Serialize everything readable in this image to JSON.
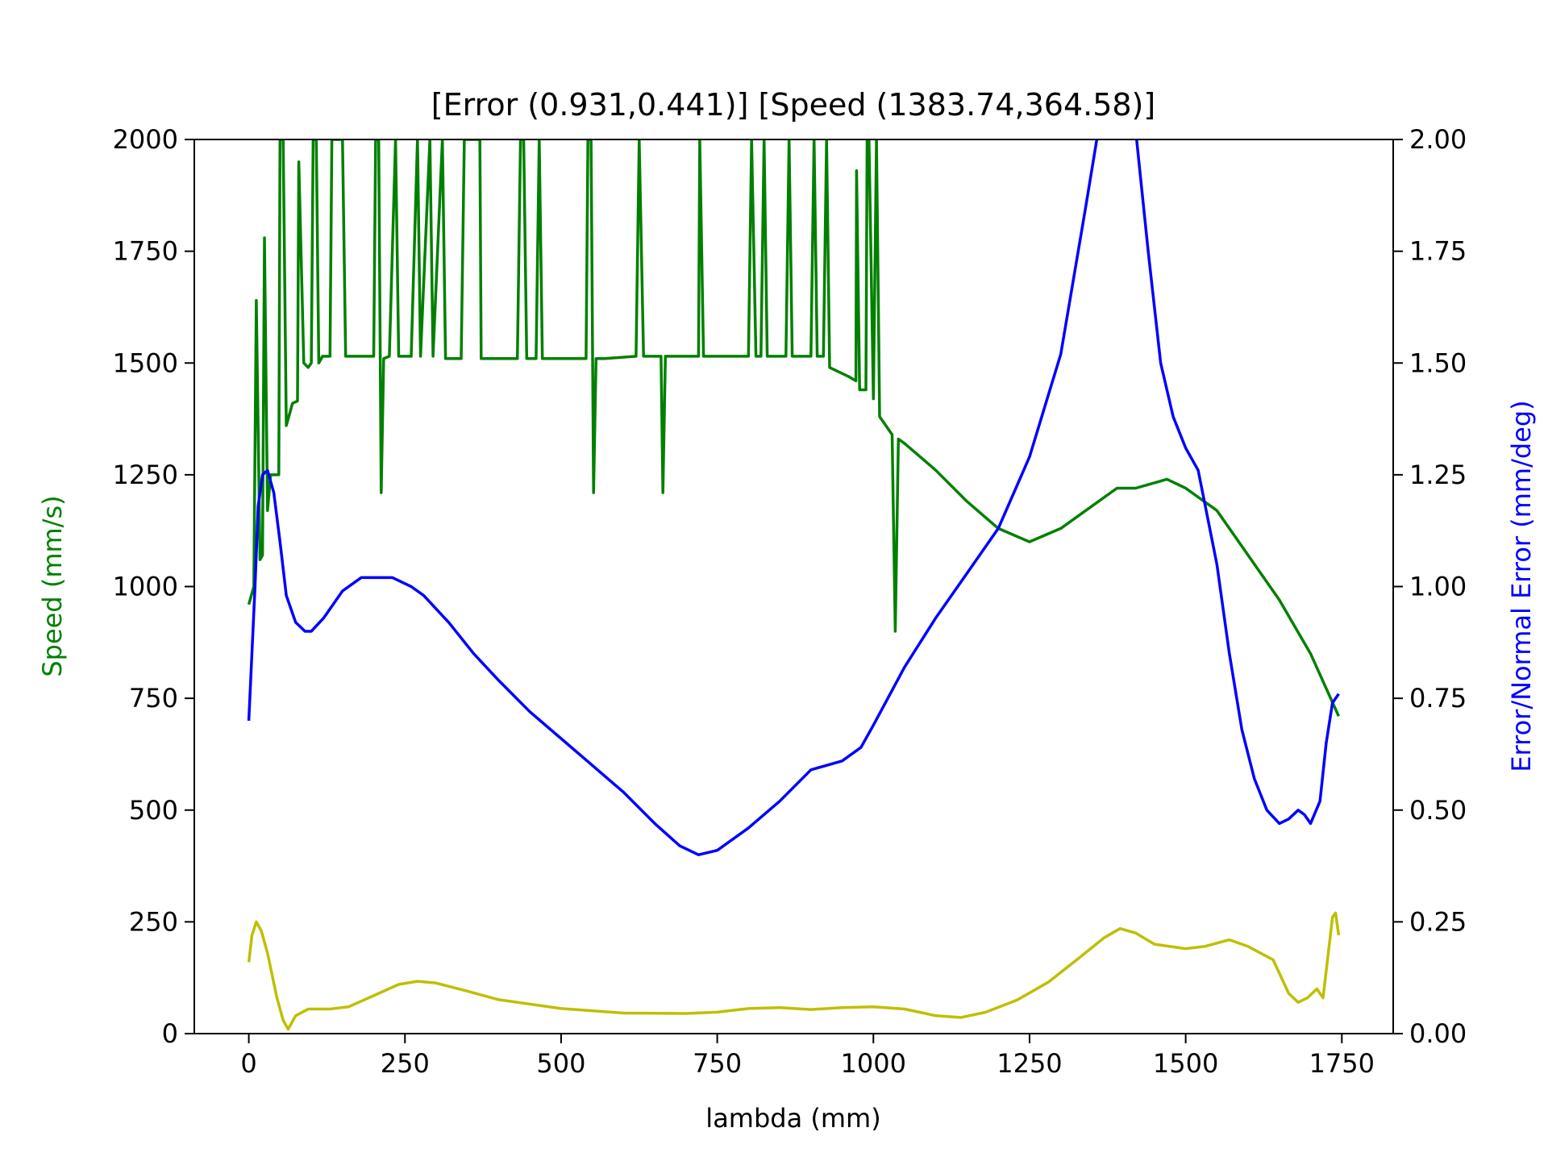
{
  "chart_data": {
    "type": "line",
    "title": "[Error (0.931,0.441)] [Speed (1383.74,364.58)]",
    "x_label": "lambda (mm)",
    "y_label": "Speed (mm/s)",
    "y_label_color": "#008000",
    "y2_label": "Error/Normal Error (mm/deg)",
    "y2_label_color": "#0000ff",
    "xlim": [
      -87.25,
      1832.25
    ],
    "xticks": [
      0,
      250,
      500,
      750,
      1000,
      1250,
      1500,
      1750
    ],
    "ylim": [
      0,
      2000
    ],
    "yticks": [
      0,
      250,
      500,
      750,
      1000,
      1250,
      1500,
      1750,
      2000
    ],
    "y2lim": [
      0,
      2
    ],
    "y2ticks": [
      {
        "value": 0,
        "label": "0.00"
      },
      {
        "value": 0.25,
        "label": "0.25"
      },
      {
        "value": 0.5,
        "label": "0.50"
      },
      {
        "value": 0.75,
        "label": "0.75"
      },
      {
        "value": 1,
        "label": "1.00"
      },
      {
        "value": 1.25,
        "label": "1.25"
      },
      {
        "value": 1.5,
        "label": "1.50"
      },
      {
        "value": 1.75,
        "label": "1.75"
      },
      {
        "value": 2,
        "label": "2.00"
      }
    ],
    "series": [
      {
        "color": "#008000",
        "x": [
          0,
          8,
          12,
          18,
          22,
          25,
          30,
          35,
          48,
          50,
          55,
          60,
          70,
          78,
          80,
          88,
          95,
          100,
          103,
          108,
          112,
          118,
          130,
          133,
          150,
          155,
          200,
          203,
          208,
          212,
          216,
          225,
          235,
          240,
          260,
          270,
          275,
          290,
          295,
          310,
          315,
          340,
          345,
          370,
          372,
          430,
          435,
          440,
          445,
          460,
          465,
          470,
          540,
          543,
          548,
          552,
          556,
          570,
          620,
          625,
          632,
          660,
          663,
          667,
          675,
          720,
          722,
          728,
          800,
          805,
          812,
          820,
          825,
          830,
          860,
          865,
          870,
          900,
          905,
          910,
          920,
          925,
          930,
          960,
          972,
          973,
          978,
          988,
          990,
          993,
          1000,
          1005,
          1010,
          1030,
          1035,
          1040,
          1050,
          1100,
          1150,
          1200,
          1250,
          1300,
          1350,
          1390,
          1420,
          1470,
          1500,
          1550,
          1600,
          1650,
          1700,
          1745
        ],
        "values": [
          960,
          1000,
          1640,
          1060,
          1070,
          1780,
          1170,
          1250,
          1250,
          2000,
          2000,
          1360,
          1410,
          1415,
          1950,
          1500,
          1490,
          1500,
          2000,
          2000,
          1500,
          1515,
          1515,
          2000,
          2000,
          1515,
          1515,
          2000,
          2000,
          1210,
          1510,
          1515,
          2000,
          1515,
          1515,
          2000,
          1515,
          2000,
          1515,
          2000,
          1510,
          1510,
          2000,
          2000,
          1510,
          1510,
          2000,
          2000,
          1510,
          1510,
          2000,
          1510,
          1510,
          2000,
          2000,
          1210,
          1510,
          1510,
          1515,
          2000,
          1515,
          1515,
          1210,
          1515,
          1515,
          1515,
          2000,
          1515,
          1515,
          2000,
          1515,
          1515,
          2000,
          1515,
          1515,
          2000,
          1515,
          1515,
          2000,
          1515,
          1515,
          2000,
          1490,
          1470,
          1460,
          1930,
          1440,
          1440,
          2000,
          2000,
          1420,
          2000,
          1380,
          1340,
          900,
          1330,
          1320,
          1260,
          1190,
          1130,
          1100,
          1130,
          1180,
          1220,
          1220,
          1240,
          1220,
          1170,
          1070,
          970,
          850,
          710
        ]
      },
      {
        "color": "#0000ff",
        "axis": "y2",
        "x": [
          0,
          10,
          15,
          22,
          30,
          40,
          50,
          60,
          75,
          90,
          100,
          120,
          150,
          180,
          200,
          230,
          260,
          280,
          320,
          360,
          400,
          450,
          500,
          550,
          600,
          650,
          690,
          720,
          750,
          800,
          850,
          900,
          950,
          980,
          1000,
          1050,
          1100,
          1150,
          1200,
          1250,
          1300,
          1340,
          1360,
          1420,
          1440,
          1460,
          1480,
          1500,
          1520,
          1550,
          1570,
          1590,
          1610,
          1630,
          1650,
          1665,
          1680,
          1690,
          1700,
          1715,
          1725,
          1735,
          1745
        ],
        "values": [
          0.7,
          1.0,
          1.18,
          1.25,
          1.26,
          1.21,
          1.1,
          0.98,
          0.92,
          0.9,
          0.9,
          0.93,
          0.99,
          1.02,
          1.02,
          1.02,
          1.0,
          0.98,
          0.92,
          0.85,
          0.79,
          0.72,
          0.66,
          0.6,
          0.54,
          0.47,
          0.42,
          0.4,
          0.41,
          0.46,
          0.52,
          0.59,
          0.61,
          0.64,
          0.69,
          0.82,
          0.93,
          1.03,
          1.13,
          1.29,
          1.52,
          1.85,
          2.02,
          2.02,
          1.75,
          1.5,
          1.38,
          1.31,
          1.26,
          1.05,
          0.85,
          0.68,
          0.57,
          0.5,
          0.47,
          0.48,
          0.5,
          0.49,
          0.47,
          0.52,
          0.65,
          0.74,
          0.76
        ]
      },
      {
        "color": "#bfbf00",
        "axis": "y2",
        "x": [
          0,
          5,
          12,
          20,
          30,
          45,
          55,
          63,
          75,
          95,
          130,
          160,
          200,
          240,
          270,
          300,
          350,
          400,
          500,
          600,
          700,
          750,
          800,
          850,
          900,
          950,
          1000,
          1050,
          1100,
          1140,
          1180,
          1230,
          1280,
          1330,
          1370,
          1395,
          1420,
          1450,
          1500,
          1530,
          1570,
          1600,
          1640,
          1665,
          1680,
          1695,
          1710,
          1720,
          1735,
          1740,
          1745
        ],
        "values": [
          0.16,
          0.22,
          0.25,
          0.23,
          0.18,
          0.08,
          0.03,
          0.01,
          0.04,
          0.055,
          0.055,
          0.06,
          0.085,
          0.11,
          0.117,
          0.113,
          0.095,
          0.076,
          0.056,
          0.046,
          0.045,
          0.048,
          0.056,
          0.058,
          0.054,
          0.058,
          0.06,
          0.055,
          0.04,
          0.036,
          0.048,
          0.075,
          0.115,
          0.17,
          0.215,
          0.235,
          0.225,
          0.2,
          0.19,
          0.195,
          0.21,
          0.195,
          0.165,
          0.09,
          0.07,
          0.08,
          0.1,
          0.08,
          0.26,
          0.27,
          0.22
        ]
      }
    ]
  }
}
